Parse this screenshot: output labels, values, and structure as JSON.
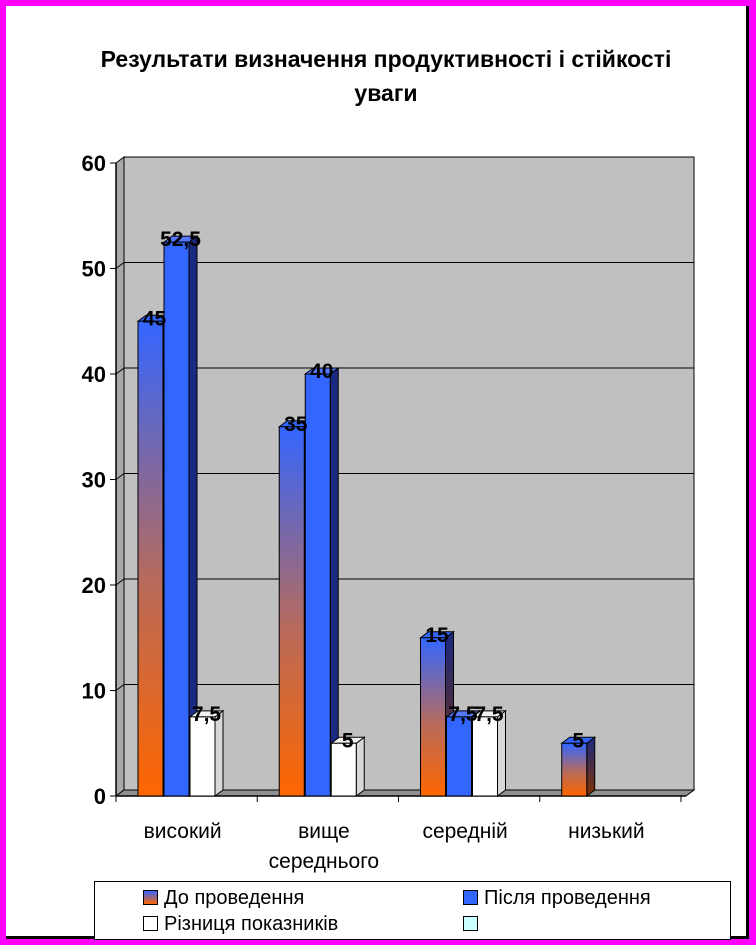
{
  "chart_data": {
    "type": "bar",
    "title": "Результати визначення продуктивності і стійкості уваги",
    "categories": [
      "високий",
      "вище середнього",
      "середній",
      "низький"
    ],
    "series": [
      {
        "name": "До проведення",
        "values": [
          45,
          35,
          15,
          5
        ],
        "labels": [
          "45",
          "35",
          "15",
          "5"
        ]
      },
      {
        "name": "Після проведення",
        "values": [
          52.5,
          40,
          7.5,
          null
        ],
        "labels": [
          "52,5",
          "40",
          "7,5",
          ""
        ]
      },
      {
        "name": "Різниця показників",
        "values": [
          7.5,
          5,
          7.5,
          null
        ],
        "labels": [
          "7,5",
          "5",
          "7,5",
          ""
        ]
      }
    ],
    "y_ticks": [
      "0",
      "10",
      "20",
      "30",
      "40",
      "50",
      "60"
    ],
    "ylim": [
      0,
      60
    ],
    "grid": true,
    "legend_position": "bottom",
    "colors": {
      "before_top": "#3366ff",
      "before_bottom": "#ff6600",
      "after": "#3366ff",
      "after_side": "#1a2a80",
      "diff": "#ffffff",
      "plot_bg": "#c0c0c0",
      "page_border": "#ff00ff",
      "legend_extra": "#ccffff"
    }
  }
}
